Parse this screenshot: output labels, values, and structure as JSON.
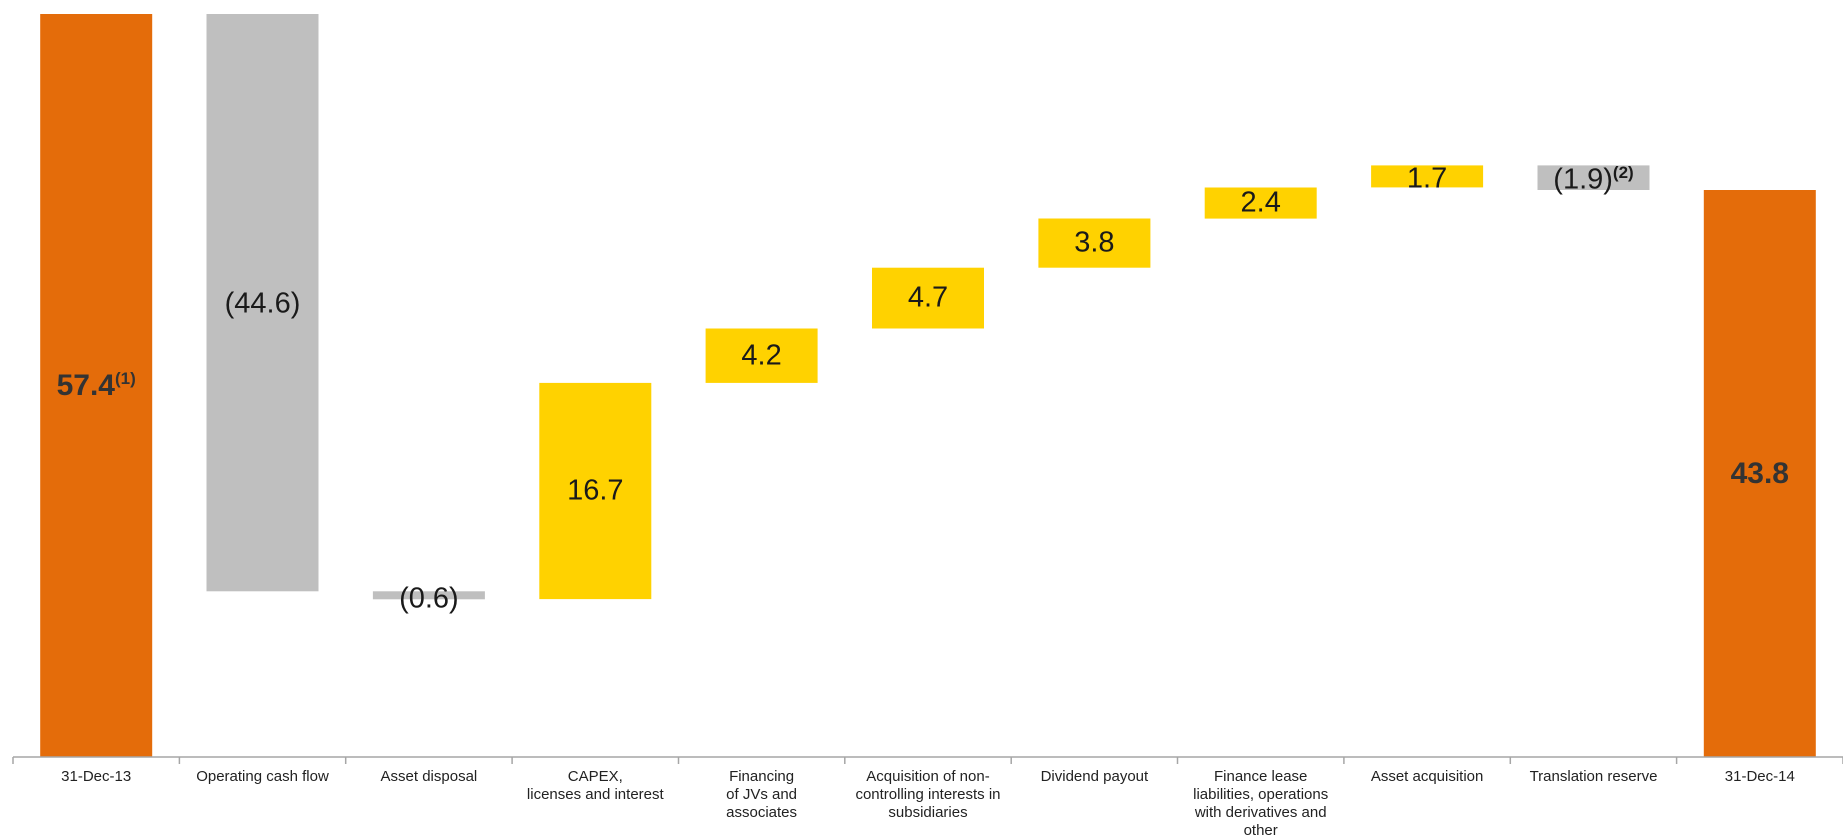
{
  "chart_data": {
    "type": "waterfall",
    "categories": [
      "31-Dec-13",
      "Operating cash flow",
      "Asset disposal",
      "CAPEX,\nlicenses and interest",
      "Financing\nof JVs and\nassociates",
      "Acquisition of non-\ncontrolling interests in\nsubsidiaries",
      "Dividend payout",
      "Finance lease\nliabilities, operations\nwith derivatives and\nother",
      "Asset acquisition",
      "Translation reserve",
      "31-Dec-14"
    ],
    "values": [
      57.4,
      -44.6,
      -0.6,
      16.7,
      4.2,
      4.7,
      3.8,
      2.4,
      1.7,
      -1.9,
      43.8
    ],
    "kinds": [
      "total",
      "decrease",
      "decrease",
      "increase",
      "increase",
      "increase",
      "increase",
      "increase",
      "increase",
      "decrease",
      "total"
    ],
    "value_labels": [
      "57.4",
      "(44.6)",
      "(0.6)",
      "16.7",
      "4.2",
      "4.7",
      "3.8",
      "2.4",
      "1.7",
      "(1.9)",
      "43.8"
    ],
    "footnotes": [
      "(1)",
      "",
      "",
      "",
      "",
      "",
      "",
      "",
      "",
      "(2)",
      ""
    ],
    "ylim": [
      0,
      57.4
    ],
    "grid": false,
    "legend": "none"
  },
  "colors": {
    "total": "#E46C0A",
    "increase": "#FFD200",
    "decrease": "#BFBFBF",
    "axis": "#A6A6A6"
  }
}
